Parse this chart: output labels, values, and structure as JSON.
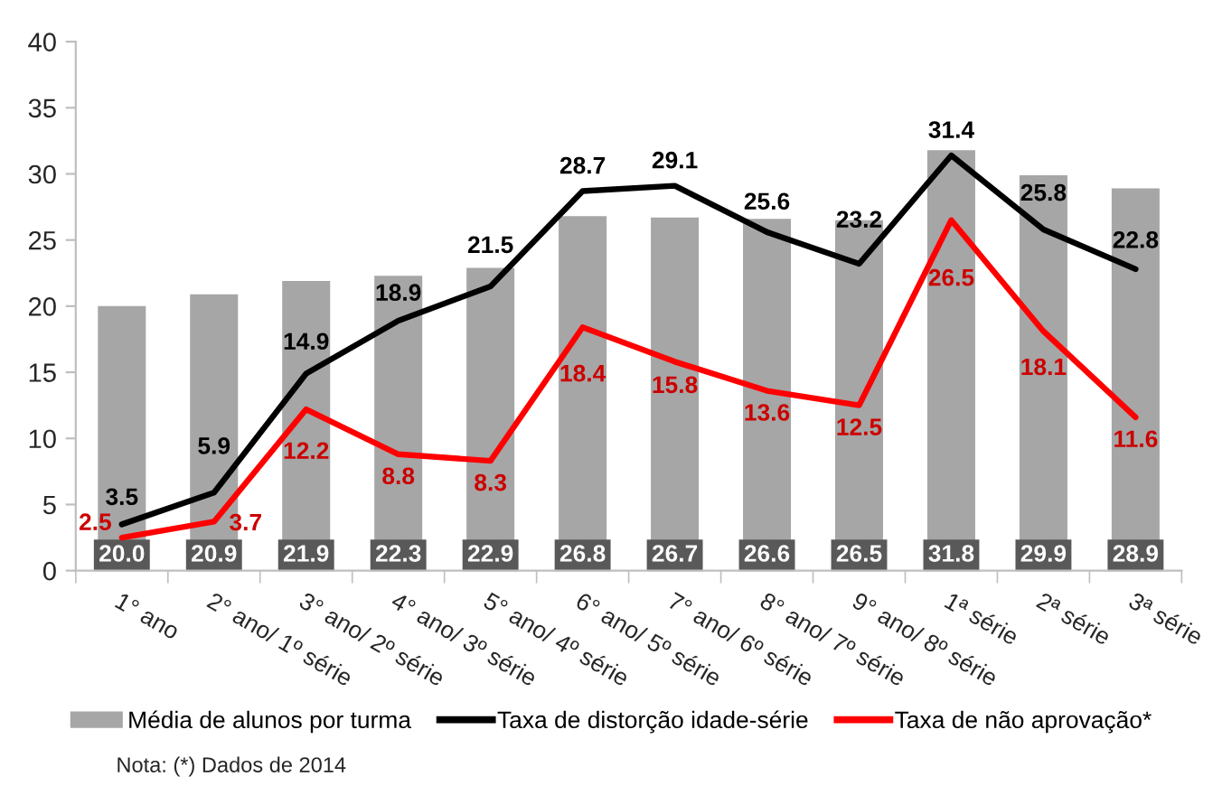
{
  "chart_data": {
    "type": "bar",
    "categories": [
      "1° ano",
      "2° ano/ 1º série",
      "3° ano/ 2º série",
      "4° ano/ 3º série",
      "5° ano/ 4º série",
      "6° ano/ 5º série",
      "7° ano/ 6º série",
      "8° ano/ 7º série",
      "9° ano/ 8º série",
      "1ª série",
      "2ª série",
      "3ª série"
    ],
    "series": [
      {
        "name": "Média de alunos por turma",
        "color": "#a6a6a6",
        "values": [
          20.0,
          20.9,
          21.9,
          22.3,
          22.9,
          26.8,
          26.7,
          26.6,
          26.5,
          31.8,
          29.9,
          28.9
        ],
        "value_labels": [
          "20.0",
          "20.9",
          "21.9",
          "22.3",
          "22.9",
          "26.8",
          "26.7",
          "26.6",
          "26.5",
          "31.8",
          "29.9",
          "28.9"
        ]
      },
      {
        "name": "Taxa de distorção idade-série",
        "type": "line",
        "color": "#000000",
        "values": [
          3.5,
          5.9,
          14.9,
          18.9,
          21.5,
          28.7,
          29.1,
          25.6,
          23.2,
          31.4,
          25.8,
          22.8
        ],
        "value_labels": [
          "3.5",
          "5.9",
          "14.9",
          "18.9",
          "21.5",
          "28.7",
          "29.1",
          "25.6",
          "23.2",
          "31.4",
          "25.8",
          "22.8"
        ]
      },
      {
        "name": "Taxa de não aprovação*",
        "type": "line",
        "color": "#ff0000",
        "values": [
          2.5,
          3.7,
          12.2,
          8.8,
          8.3,
          18.4,
          15.8,
          13.6,
          12.5,
          26.5,
          18.1,
          11.6
        ],
        "value_labels": [
          "2.5",
          "3.7",
          "12.2",
          "8.8",
          "8.3",
          "18.4",
          "15.8",
          "13.6",
          "12.5",
          "26.5",
          "18.1",
          "11.6"
        ]
      }
    ],
    "ylim": [
      0,
      40
    ],
    "yticks": [
      0,
      5,
      10,
      15,
      20,
      25,
      30,
      35,
      40
    ],
    "legend": "bottom",
    "line_style": "solid",
    "annotations": [
      "Nota: (*) Dados de 2014"
    ]
  }
}
